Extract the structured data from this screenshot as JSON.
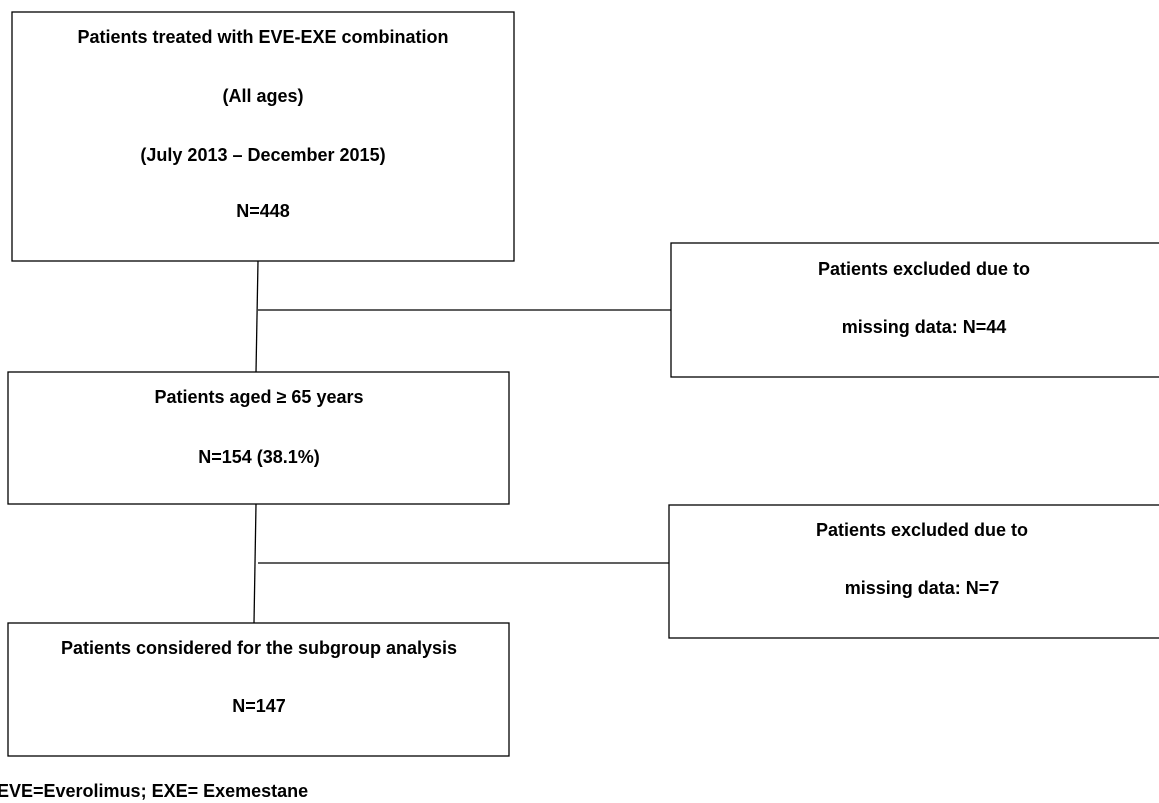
{
  "nodes": [
    {
      "lines": [
        "Patients treated with EVE-EXE combination",
        "(All ages)",
        "(July 2013 – December 2015)",
        "N=448"
      ]
    },
    {
      "lines": [
        "Patients excluded due to",
        "missing data: N=44"
      ]
    },
    {
      "lines": [
        "Patients aged ≥ 65 years",
        "N=154 (38.1%)"
      ]
    },
    {
      "lines": [
        "Patients excluded due to",
        "missing data: N=7"
      ]
    },
    {
      "lines": [
        "Patients considered for the subgroup analysis",
        "N=147"
      ]
    }
  ],
  "footnote": "EVE=Everolimus; EXE= Exemestane"
}
